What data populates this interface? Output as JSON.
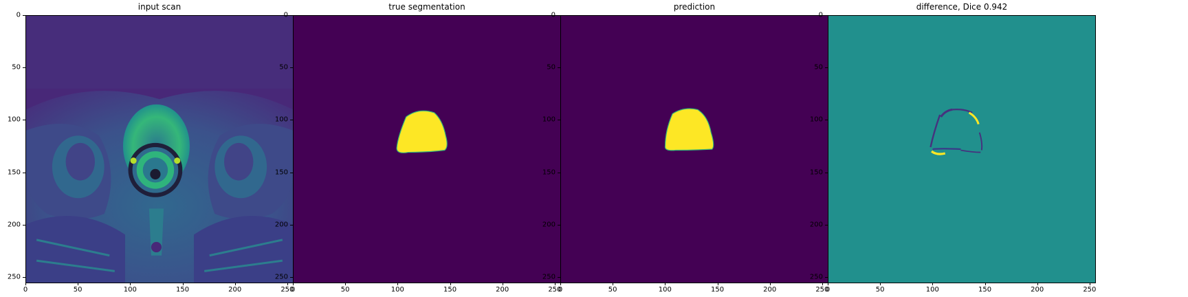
{
  "figure": {
    "panels": [
      {
        "title": "input scan"
      },
      {
        "title": "true segmentation"
      },
      {
        "title": "prediction"
      },
      {
        "title": "difference, Dice 0.942"
      }
    ],
    "x_ticks": [
      "0",
      "50",
      "100",
      "150",
      "200",
      "250"
    ],
    "y_ticks": [
      "0",
      "50",
      "100",
      "150",
      "200",
      "250"
    ],
    "image_extent": [
      0,
      256
    ],
    "colors": {
      "background_dark": "#440154",
      "mask_yellow": "#fde725",
      "teal_mid": "#21908d",
      "green_bright": "#3fbc73",
      "blue_mid": "#31688e",
      "purple_deep": "#46327e"
    }
  }
}
